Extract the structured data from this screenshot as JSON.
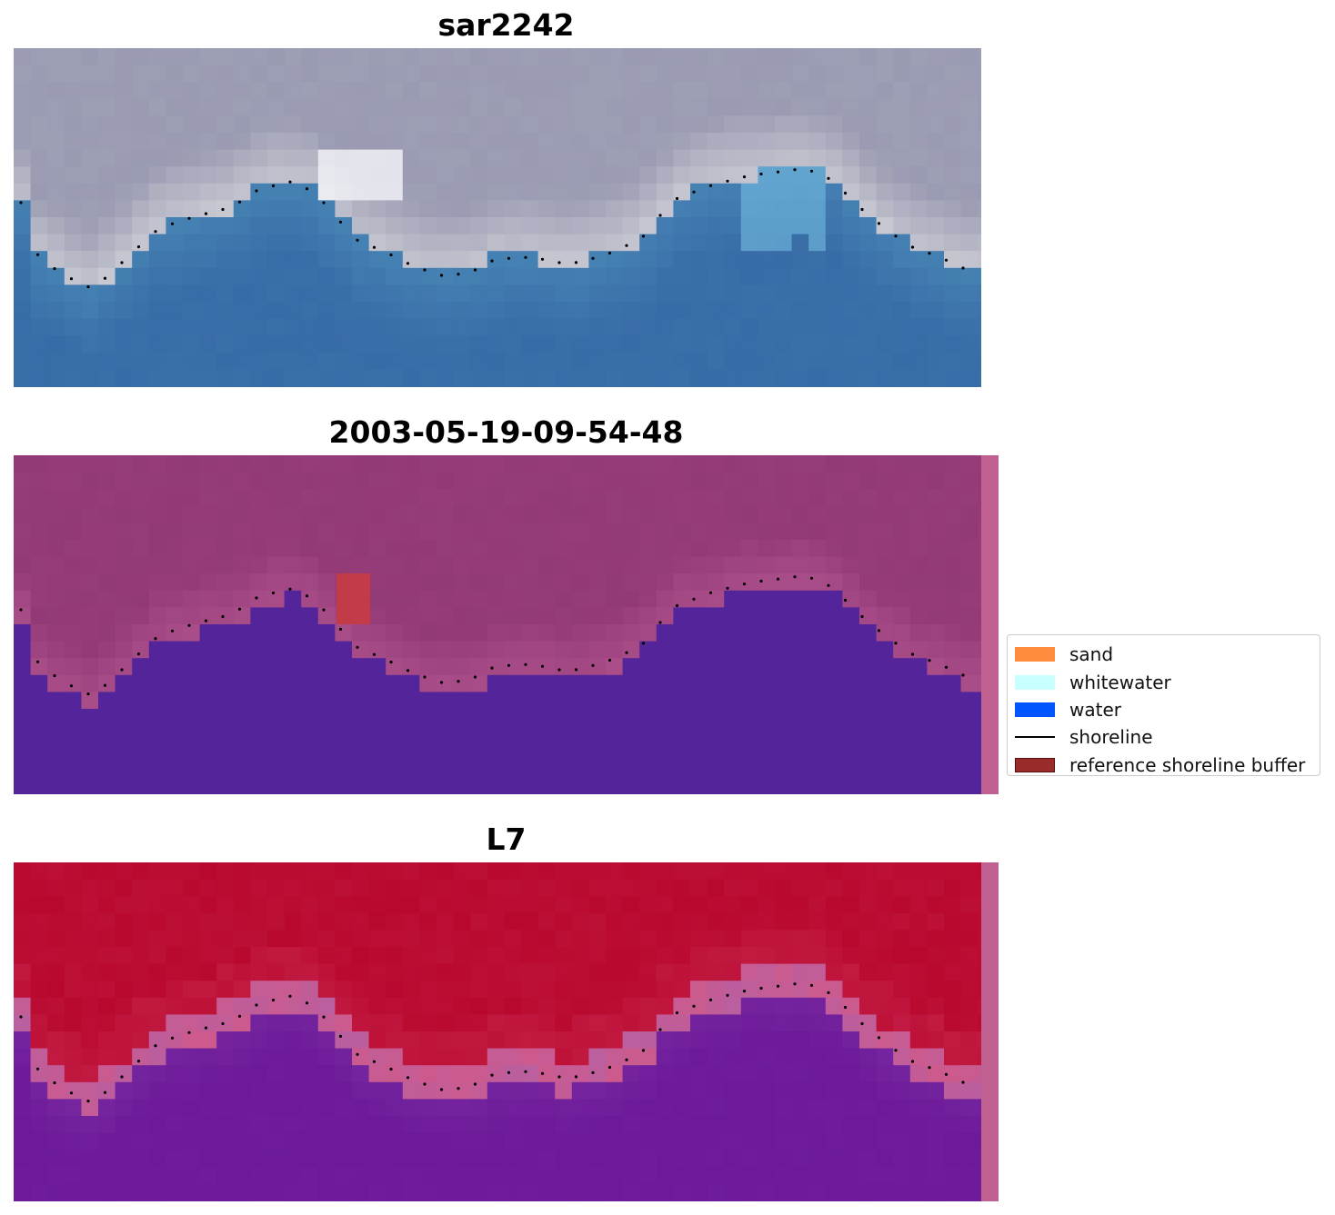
{
  "panels": [
    {
      "title": "sar2242",
      "kind": "rgb"
    },
    {
      "title": "2003-05-19-09-54-48",
      "kind": "classified"
    },
    {
      "title": "L7",
      "kind": "index"
    }
  ],
  "legend": {
    "items": [
      {
        "label": "sand",
        "color": "#ff8c3c",
        "type": "patch"
      },
      {
        "label": "whitewater",
        "color": "#c8ffff",
        "type": "patch"
      },
      {
        "label": "water",
        "color": "#0055ff",
        "type": "patch"
      },
      {
        "label": "shoreline",
        "color": "#000000",
        "type": "line"
      },
      {
        "label": "reference shoreline buffer",
        "color": "#992b2b",
        "type": "patch"
      }
    ]
  },
  "colors": {
    "sky": "#9a9ab2",
    "surf": "#c8c9d2",
    "sea": "#3a6fa8",
    "class_land": "#923a76",
    "class_water": "#54249a",
    "buffer_edge": "#c06090",
    "index_high": "#b9082e",
    "index_low": "#6e1c9a"
  }
}
